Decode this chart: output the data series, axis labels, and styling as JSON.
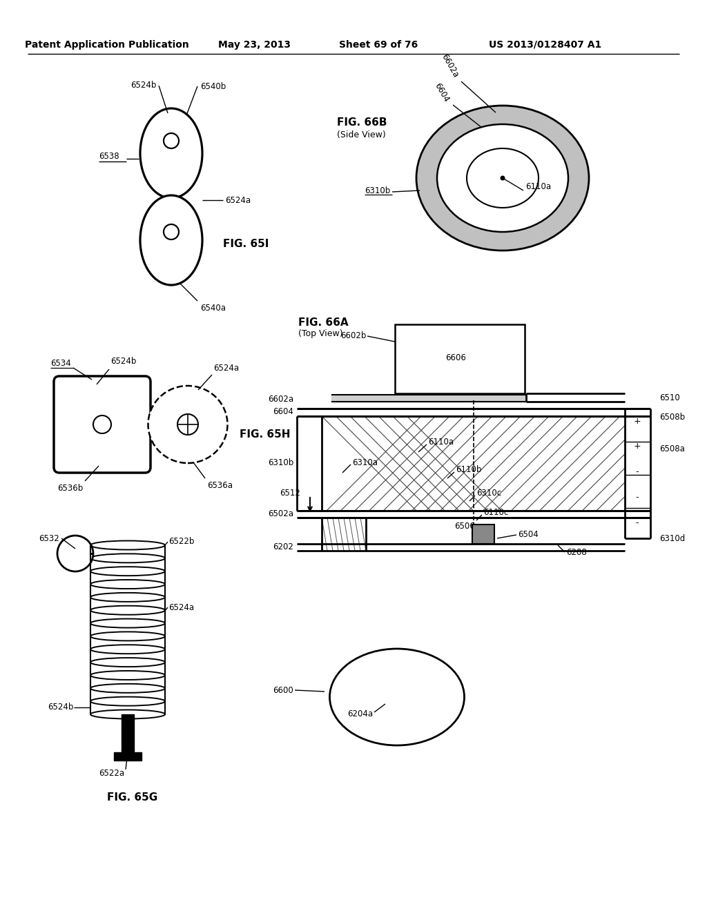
{
  "bg_color": "#ffffff",
  "header": {
    "left": "Patent Application Publication",
    "mid": "May 23, 2013",
    "sheet": "Sheet 69 of 76",
    "patent": "US 2013/0128407 A1"
  }
}
